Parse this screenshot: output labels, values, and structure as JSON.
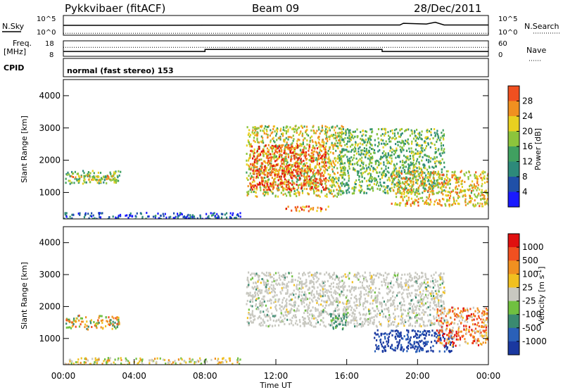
{
  "header": {
    "station": "Pykkvibaer (fitACF)",
    "beam": "Beam 09",
    "date": "28/Dec/2011"
  },
  "top_panels": {
    "nsky_label": "N.Sky",
    "nsearch_label": "N.Search",
    "freq_label": "Freq.",
    "freq_unit": "[MHz]",
    "nave_label": "Nave",
    "cpid_label": "CPID",
    "cpid_text": "normal (fast stereo) 153",
    "noise_ticks": [
      "10^5",
      "10^0"
    ],
    "noise_right_ticks": [
      "10^5",
      "10^0"
    ],
    "freq_ticks": [
      "18",
      "8"
    ],
    "nave_ticks": [
      "60",
      "0"
    ]
  },
  "colors": {
    "power": [
      "#1a1aff",
      "#2050a8",
      "#2d8a7a",
      "#40a060",
      "#8cc43c",
      "#e8d020",
      "#f09020",
      "#f05020",
      "#e01010"
    ],
    "velocity": [
      "#1a38a0",
      "#2a60b8",
      "#3a8a70",
      "#70c040",
      "#c8c8c0",
      "#f0c020",
      "#f09020",
      "#f05020",
      "#e01010"
    ]
  },
  "chart_data": [
    {
      "type": "line",
      "name": "noise",
      "x_range": [
        0,
        24
      ],
      "ylim_log": [
        0,
        5
      ],
      "series": [
        {
          "name": "N.Sky",
          "points": [
            [
              0,
              2.5
            ],
            [
              4,
              2.5
            ],
            [
              8,
              2.55
            ],
            [
              12,
              2.55
            ],
            [
              16,
              2.6
            ],
            [
              19,
              2.6
            ],
            [
              19.2,
              3.1
            ],
            [
              20.5,
              2.9
            ],
            [
              21,
              3.4
            ],
            [
              21.5,
              2.6
            ],
            [
              24,
              2.6
            ]
          ]
        },
        {
          "name": "N.Search",
          "points": [
            [
              0,
              0.15
            ],
            [
              12,
              0.15
            ],
            [
              24,
              0.15
            ]
          ]
        }
      ]
    },
    {
      "type": "line",
      "name": "frequency",
      "x_range": [
        0,
        24
      ],
      "ylim": [
        8,
        18
      ],
      "series": [
        {
          "name": "Freq",
          "points": [
            [
              0,
              10.7
            ],
            [
              8,
              10.7
            ],
            [
              8,
              12.3
            ],
            [
              18,
              12.3
            ],
            [
              18,
              10.7
            ],
            [
              24,
              10.7
            ]
          ]
        },
        {
          "name": "Nave",
          "points": [
            [
              0,
              14.0
            ],
            [
              24,
              14.0
            ]
          ]
        }
      ]
    },
    {
      "type": "heatmap",
      "name": "power",
      "xlabel": "",
      "ylabel": "Slant Range [km]",
      "x_range": [
        0,
        24
      ],
      "ylim": [
        180,
        4500
      ],
      "yticks": [
        1000,
        2000,
        3000,
        4000
      ],
      "colorbar_label": "Power [dB]",
      "colorbar_ticks": [
        4,
        8,
        12,
        16,
        20,
        24,
        28
      ],
      "clim": [
        0,
        32
      ],
      "regions": [
        {
          "t": [
            0.1,
            3.2
          ],
          "r": [
            1300,
            1700
          ],
          "level": 14
        },
        {
          "t": [
            0.3,
            3.0
          ],
          "r": [
            1400,
            1550
          ],
          "level": 20
        },
        {
          "t": [
            0,
            10.0
          ],
          "r": [
            180,
            400
          ],
          "level": 6
        },
        {
          "t": [
            10.3,
            15.8
          ],
          "r": [
            900,
            3100
          ],
          "level": 18
        },
        {
          "t": [
            10.5,
            14.8
          ],
          "r": [
            1100,
            2500
          ],
          "level": 26
        },
        {
          "t": [
            15.5,
            21.5
          ],
          "r": [
            1000,
            3000
          ],
          "level": 14
        },
        {
          "t": [
            18.5,
            24.0
          ],
          "r": [
            600,
            1700
          ],
          "level": 20
        },
        {
          "t": [
            12.5,
            15.0
          ],
          "r": [
            450,
            600
          ],
          "level": 24
        }
      ]
    },
    {
      "type": "heatmap",
      "name": "velocity",
      "xlabel": "Time UT",
      "ylabel": "Slant Range [km]",
      "x_range": [
        0,
        24
      ],
      "ylim": [
        180,
        4500
      ],
      "yticks": [
        1000,
        2000,
        3000,
        4000
      ],
      "xticks": [
        "00:00",
        "04:00",
        "08:00",
        "12:00",
        "16:00",
        "20:00",
        "00:00"
      ],
      "colorbar_label": "Velocity [m s^-1]",
      "colorbar_ticks": [
        "1000",
        "500",
        "100",
        "25",
        "-25",
        "-100",
        "-500",
        "-1000"
      ],
      "regions": [
        {
          "t": [
            0.1,
            3.2
          ],
          "r": [
            1300,
            1750
          ],
          "v": "mix_green_orange"
        },
        {
          "t": [
            0,
            10.0
          ],
          "r": [
            180,
            420
          ],
          "v": "low"
        },
        {
          "t": [
            10.3,
            21.5
          ],
          "r": [
            1400,
            3100
          ],
          "v": "grey"
        },
        {
          "t": [
            17.5,
            22.0
          ],
          "r": [
            600,
            1300
          ],
          "v": "blue"
        },
        {
          "t": [
            21.0,
            24.0
          ],
          "r": [
            800,
            2000
          ],
          "v": "orange"
        },
        {
          "t": [
            15.0,
            16.0
          ],
          "r": [
            1300,
            1800
          ],
          "v": "green"
        }
      ]
    }
  ]
}
